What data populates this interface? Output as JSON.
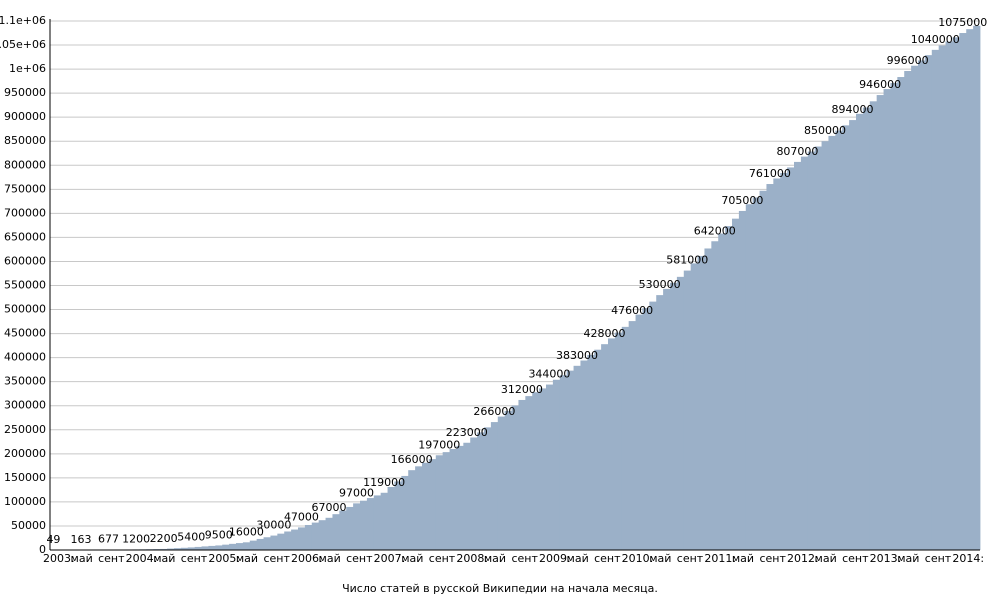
{
  "chart_data": {
    "type": "step-area",
    "title": "Число статей в русской Википедии на начала месяца.",
    "color": "#9bb0c8",
    "grid": true,
    "categories": [
      "2003:",
      null,
      null,
      null,
      "май",
      null,
      null,
      null,
      "сент",
      null,
      null,
      null,
      "2004:",
      null,
      null,
      null,
      "май",
      null,
      null,
      null,
      "сент",
      null,
      null,
      null,
      "2005:",
      null,
      null,
      null,
      "май",
      null,
      null,
      null,
      "сент",
      null,
      null,
      null,
      "2006:",
      null,
      null,
      null,
      "май",
      null,
      null,
      null,
      "сент",
      null,
      null,
      null,
      "2007:",
      null,
      null,
      null,
      "май",
      null,
      null,
      null,
      "сент",
      null,
      null,
      null,
      "2008:",
      null,
      null,
      null,
      "май",
      null,
      null,
      null,
      "сент",
      null,
      null,
      null,
      "2009:",
      null,
      null,
      null,
      "май",
      null,
      null,
      null,
      "сент",
      null,
      null,
      null,
      "2010:",
      null,
      null,
      null,
      "май",
      null,
      null,
      null,
      "сент",
      null,
      null,
      null,
      "2011:",
      null,
      null,
      null,
      "май",
      null,
      null,
      null,
      "сент",
      null,
      null,
      null,
      "2012:",
      null,
      null,
      null,
      "май",
      null,
      null,
      null,
      "сент",
      null,
      null,
      null,
      "2013:",
      null,
      null,
      null,
      "май",
      null,
      null,
      null,
      "сент",
      null,
      null,
      null,
      "2014:",
      null,
      null
    ],
    "values": [
      49,
      78,
      106,
      135,
      163,
      292,
      420,
      549,
      677,
      808,
      939,
      1069,
      1200,
      1450,
      1700,
      1950,
      2200,
      3000,
      3800,
      4600,
      5400,
      6400,
      7500,
      8500,
      9500,
      11100,
      12800,
      14400,
      16000,
      19500,
      23000,
      26500,
      30000,
      34000,
      38500,
      42500,
      47000,
      52000,
      57000,
      62000,
      67000,
      74500,
      82000,
      89500,
      97000,
      102500,
      108000,
      113500,
      119000,
      131000,
      142500,
      154000,
      166000,
      174000,
      181500,
      189000,
      197000,
      203500,
      210000,
      216500,
      223000,
      234000,
      244500,
      255000,
      266000,
      277500,
      289000,
      300500,
      312000,
      320000,
      328000,
      336000,
      344000,
      354000,
      363500,
      373000,
      383000,
      394000,
      405500,
      416500,
      428000,
      440000,
      452000,
      464000,
      476000,
      489500,
      503000,
      516500,
      530000,
      543000,
      555500,
      568000,
      581000,
      596000,
      611500,
      627000,
      642000,
      658000,
      673500,
      689000,
      705000,
      719000,
      733000,
      747000,
      761000,
      772500,
      784000,
      795500,
      807000,
      818000,
      828500,
      839000,
      850000,
      861000,
      872000,
      883000,
      894000,
      907000,
      920000,
      933000,
      946000,
      958500,
      971000,
      983500,
      996000,
      1007000,
      1018000,
      1029000,
      1040000,
      1049000,
      1057500,
      1066000,
      1075000,
      1083000,
      1090000
    ],
    "value_labels": [
      "49",
      null,
      null,
      null,
      "163",
      null,
      null,
      null,
      "677",
      null,
      null,
      null,
      "1200",
      null,
      null,
      null,
      "2200",
      null,
      null,
      null,
      "5400",
      null,
      null,
      null,
      "9500",
      null,
      null,
      null,
      "16000",
      null,
      null,
      null,
      "30000",
      null,
      null,
      null,
      "47000",
      null,
      null,
      null,
      "67000",
      null,
      null,
      null,
      "97000",
      null,
      null,
      null,
      "119000",
      null,
      null,
      null,
      "166000",
      null,
      null,
      null,
      "197000",
      null,
      null,
      null,
      "223000",
      null,
      null,
      null,
      "266000",
      null,
      null,
      null,
      "312000",
      null,
      null,
      null,
      "344000",
      null,
      null,
      null,
      "383000",
      null,
      null,
      null,
      "428000",
      null,
      null,
      null,
      "476000",
      null,
      null,
      null,
      "530000",
      null,
      null,
      null,
      "581000",
      null,
      null,
      null,
      "642000",
      null,
      null,
      null,
      "705000",
      null,
      null,
      null,
      "761000",
      null,
      null,
      null,
      "807000",
      null,
      null,
      null,
      "850000",
      null,
      null,
      null,
      "894000",
      null,
      null,
      null,
      "946000",
      null,
      null,
      null,
      "996000",
      null,
      null,
      null,
      "1040000",
      null,
      null,
      null,
      "1075000",
      null,
      null
    ],
    "ylim": [
      0,
      1100000
    ],
    "yticks": [
      0,
      50000,
      100000,
      150000,
      200000,
      250000,
      300000,
      350000,
      400000,
      450000,
      500000,
      550000,
      600000,
      650000,
      700000,
      750000,
      800000,
      850000,
      900000,
      950000,
      {
        "value": 1000000,
        "label": "1e+06"
      },
      {
        "value": 1050000,
        "label": "1.05e+06"
      },
      {
        "value": 1100000,
        "label": "1.1e+06"
      }
    ]
  }
}
